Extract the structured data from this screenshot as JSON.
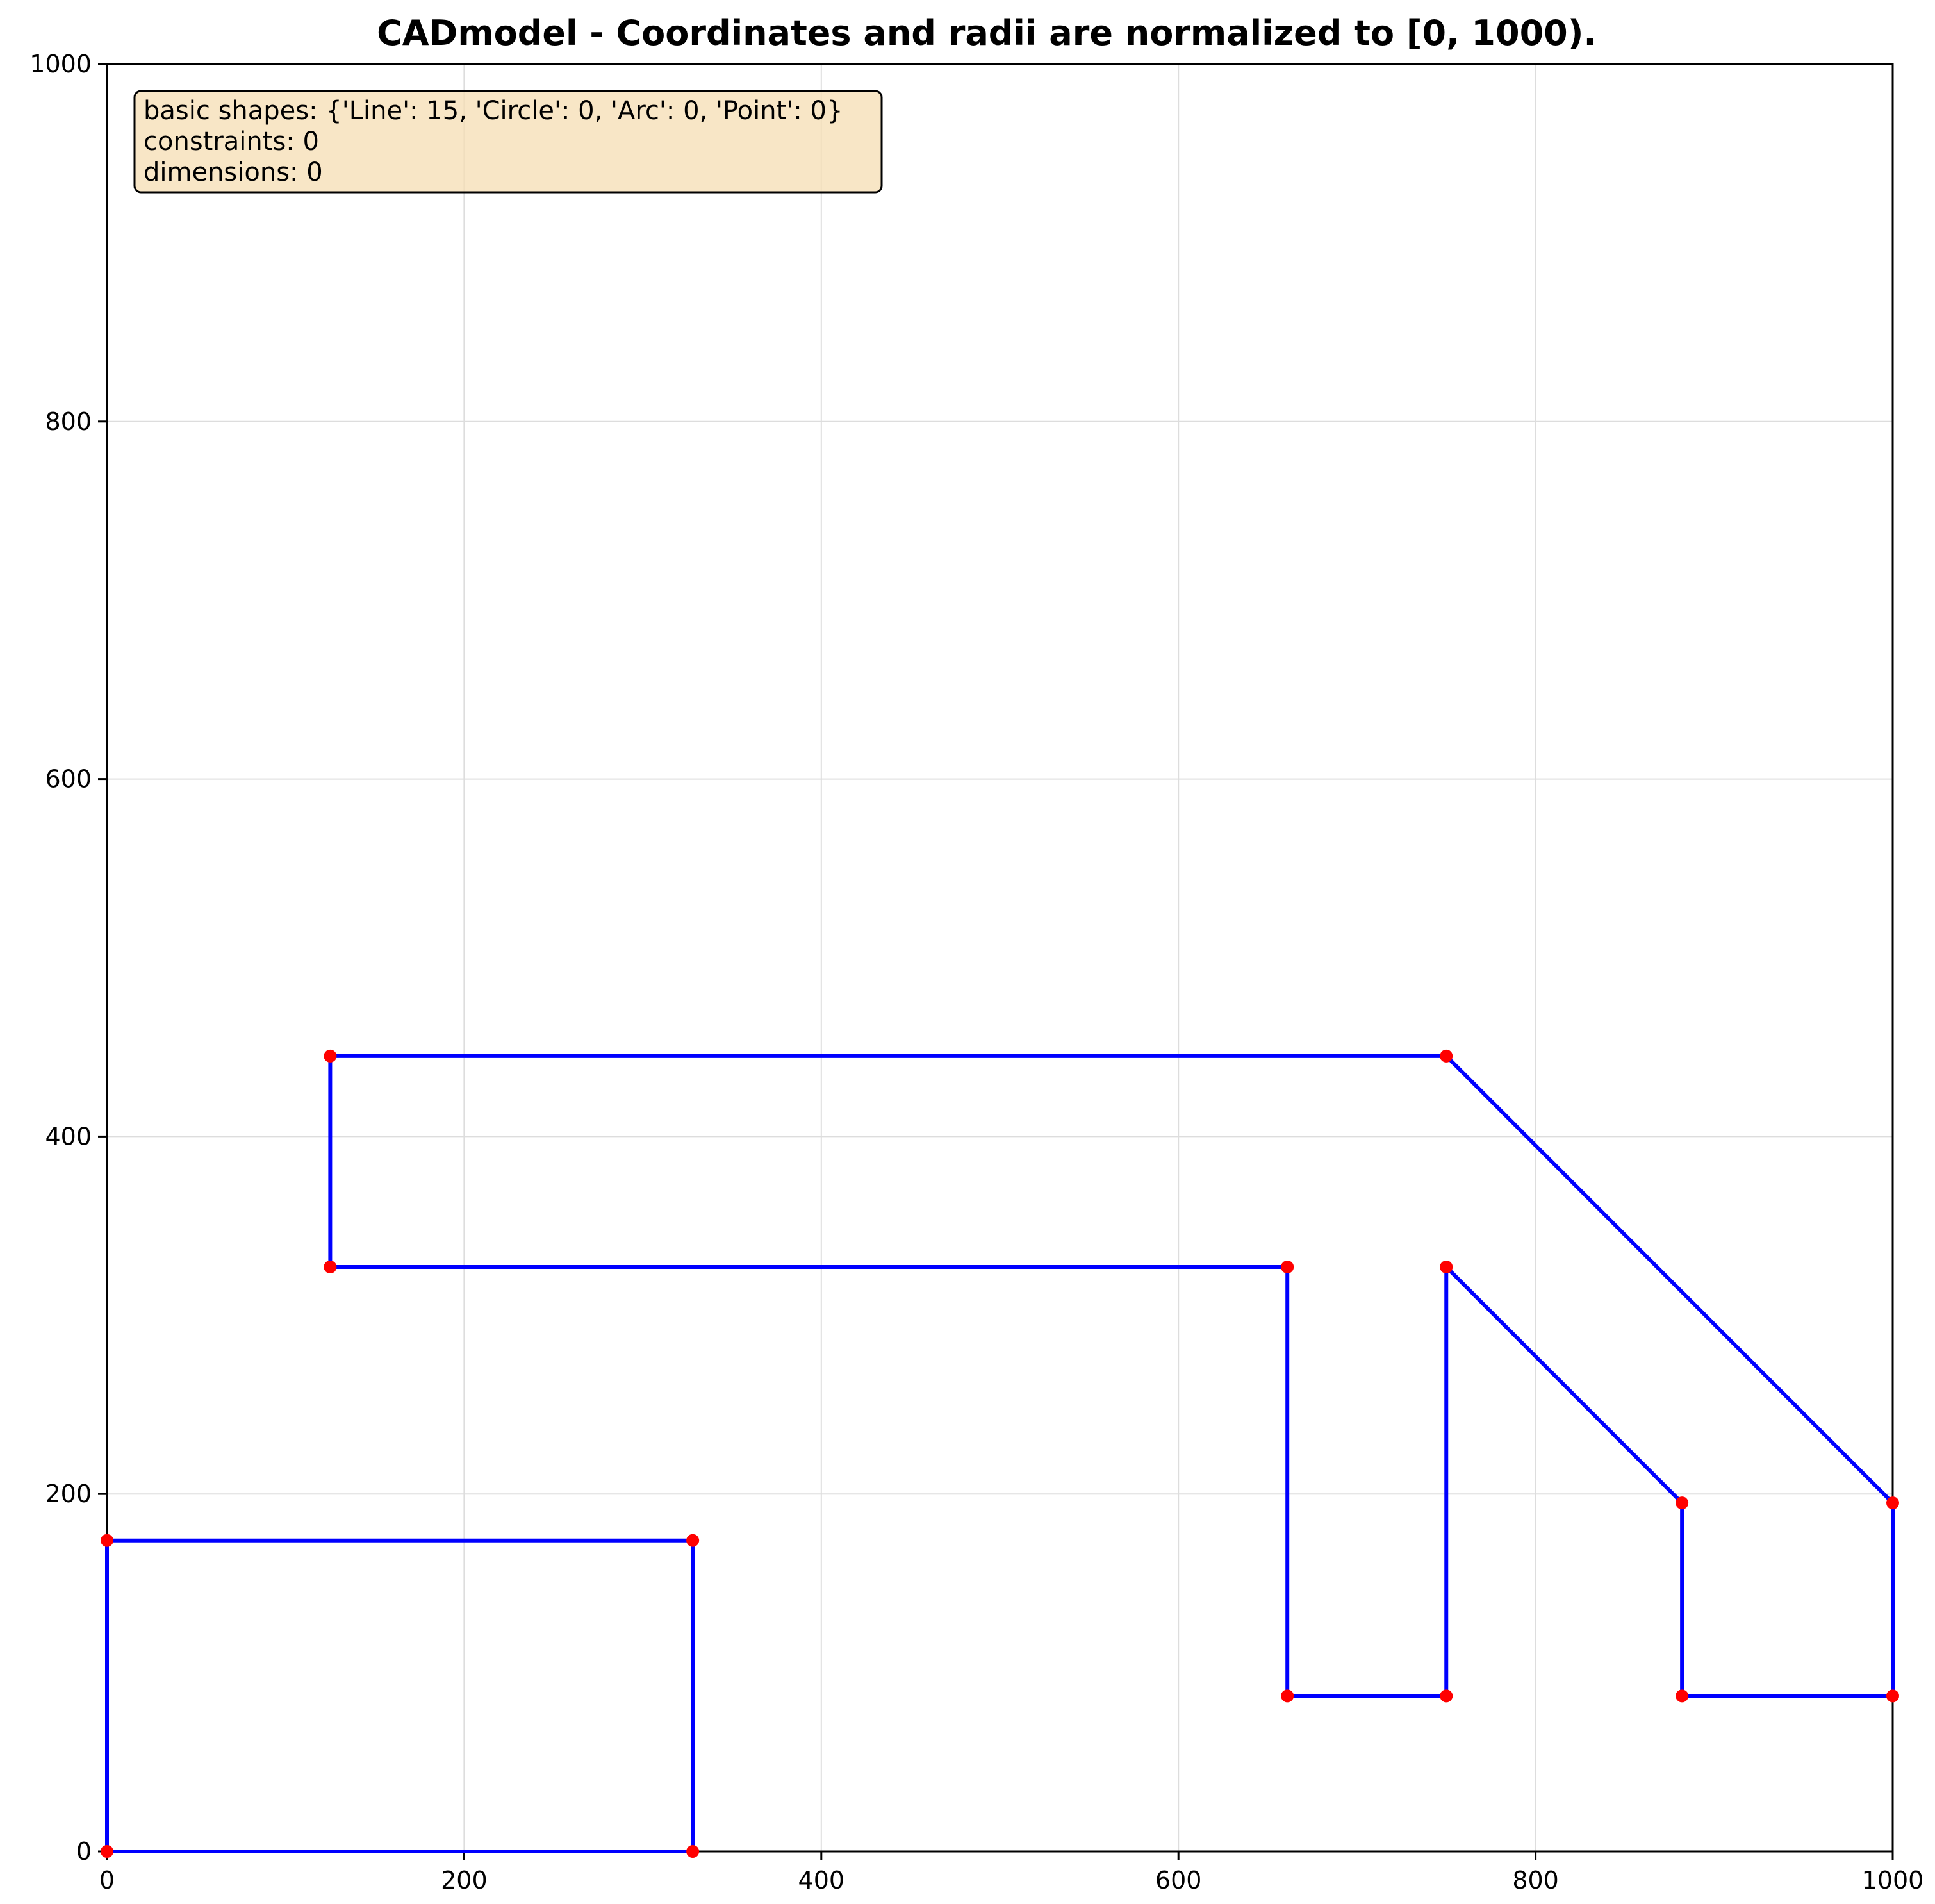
{
  "chart_data": {
    "type": "line",
    "title": "CADmodel - Coordinates and radii are normalized to [0, 1000).",
    "xlabel": "",
    "ylabel": "",
    "xlim": [
      0,
      1000
    ],
    "ylim": [
      0,
      1000
    ],
    "xticks": [
      0,
      200,
      400,
      600,
      800,
      1000
    ],
    "yticks": [
      0,
      200,
      400,
      600,
      800,
      1000
    ],
    "grid": true,
    "line_color": "#0000ff",
    "point_color": "#ff0000",
    "info_box": {
      "lines": [
        "basic shapes: {'Line': 15, 'Circle': 0, 'Arc': 0, 'Point': 0}",
        "constraints: 0",
        "dimensions: 0"
      ],
      "position": "top-left",
      "background": "#f5deb3"
    },
    "segments": [
      {
        "from": [
          0,
          0
        ],
        "to": [
          328,
          0
        ]
      },
      {
        "from": [
          328,
          0
        ],
        "to": [
          328,
          174
        ]
      },
      {
        "from": [
          328,
          174
        ],
        "to": [
          0,
          174
        ]
      },
      {
        "from": [
          0,
          174
        ],
        "to": [
          0,
          0
        ]
      },
      {
        "from": [
          125,
          445
        ],
        "to": [
          750,
          445
        ]
      },
      {
        "from": [
          750,
          445
        ],
        "to": [
          1000,
          195
        ]
      },
      {
        "from": [
          1000,
          195
        ],
        "to": [
          1000,
          87
        ]
      },
      {
        "from": [
          1000,
          87
        ],
        "to": [
          882,
          87
        ]
      },
      {
        "from": [
          882,
          87
        ],
        "to": [
          882,
          195
        ]
      },
      {
        "from": [
          882,
          195
        ],
        "to": [
          750,
          327
        ]
      },
      {
        "from": [
          750,
          327
        ],
        "to": [
          750,
          87
        ]
      },
      {
        "from": [
          750,
          87
        ],
        "to": [
          661,
          87
        ]
      },
      {
        "from": [
          661,
          87
        ],
        "to": [
          661,
          327
        ]
      },
      {
        "from": [
          661,
          327
        ],
        "to": [
          125,
          327
        ]
      },
      {
        "from": [
          125,
          327
        ],
        "to": [
          125,
          445
        ]
      }
    ]
  }
}
